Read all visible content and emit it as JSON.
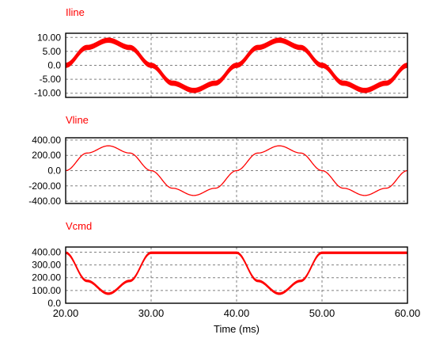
{
  "colors": {
    "trace": "#ff0000",
    "title": "#ff0000",
    "grid": "#808080",
    "frame": "#000000",
    "text": "#000000",
    "background": "#ffffff"
  },
  "shared_x": {
    "label": "Time (ms)",
    "range": [
      20,
      60
    ],
    "ticks": [
      20,
      30,
      40,
      50,
      60
    ],
    "tick_labels": [
      "20.00",
      "30.00",
      "40.00",
      "50.00",
      "60.00"
    ]
  },
  "chart_data": [
    {
      "type": "line",
      "title": "Iline",
      "xlabel": "",
      "ylabel": "",
      "xlim": [
        20,
        60
      ],
      "ylim": [
        -11.5,
        11.5
      ],
      "grid": true,
      "y_ticks": [
        10,
        5,
        0,
        -5,
        -10
      ],
      "y_tick_labels": [
        "10.00",
        "5.00",
        "0.0",
        "-5.00",
        "-10.00"
      ],
      "series": [
        {
          "x": [
            20,
            22.5,
            25,
            27.5,
            30,
            32.5,
            35,
            37.5,
            40,
            42.5,
            45,
            47.5,
            50,
            52.5,
            55,
            57.5,
            60
          ],
          "values": [
            0,
            6.4,
            9,
            6.4,
            0,
            -6.4,
            -9,
            -6.4,
            0,
            6.4,
            9,
            6.4,
            0,
            -6.4,
            -9,
            -6.4,
            0
          ],
          "ripple_band": 1.6
        }
      ]
    },
    {
      "type": "line",
      "title": "Vline",
      "xlabel": "",
      "ylabel": "",
      "xlim": [
        20,
        60
      ],
      "ylim": [
        -430,
        430
      ],
      "grid": true,
      "y_ticks": [
        400,
        200,
        0,
        -200,
        -400
      ],
      "y_tick_labels": [
        "400.00",
        "200.00",
        "0.0",
        "-200.00",
        "-400.00"
      ],
      "series": [
        {
          "x": [
            20,
            22.5,
            25,
            27.5,
            30,
            32.5,
            35,
            37.5,
            40,
            42.5,
            45,
            47.5,
            50,
            52.5,
            55,
            57.5,
            60
          ],
          "values": [
            0,
            230,
            325,
            230,
            0,
            -230,
            -325,
            -230,
            0,
            230,
            325,
            230,
            0,
            -230,
            -325,
            -230,
            0
          ]
        }
      ]
    },
    {
      "type": "line",
      "title": "Vcmd",
      "xlabel": "Time (ms)",
      "ylabel": "",
      "xlim": [
        20,
        60
      ],
      "ylim": [
        0,
        440
      ],
      "grid": true,
      "y_ticks": [
        400,
        300,
        200,
        100,
        0
      ],
      "y_tick_labels": [
        "400.00",
        "300.00",
        "200.00",
        "100.00",
        "0.0"
      ],
      "series": [
        {
          "x": [
            20,
            22.5,
            25,
            27.5,
            30,
            32.5,
            35,
            37.5,
            40,
            42.5,
            45,
            47.5,
            50,
            52.5,
            55,
            57.5,
            60
          ],
          "values": [
            395,
            175,
            75,
            175,
            395,
            395,
            395,
            395,
            395,
            175,
            75,
            175,
            395,
            395,
            395,
            395,
            395
          ],
          "ripple_band": 14
        }
      ]
    }
  ]
}
